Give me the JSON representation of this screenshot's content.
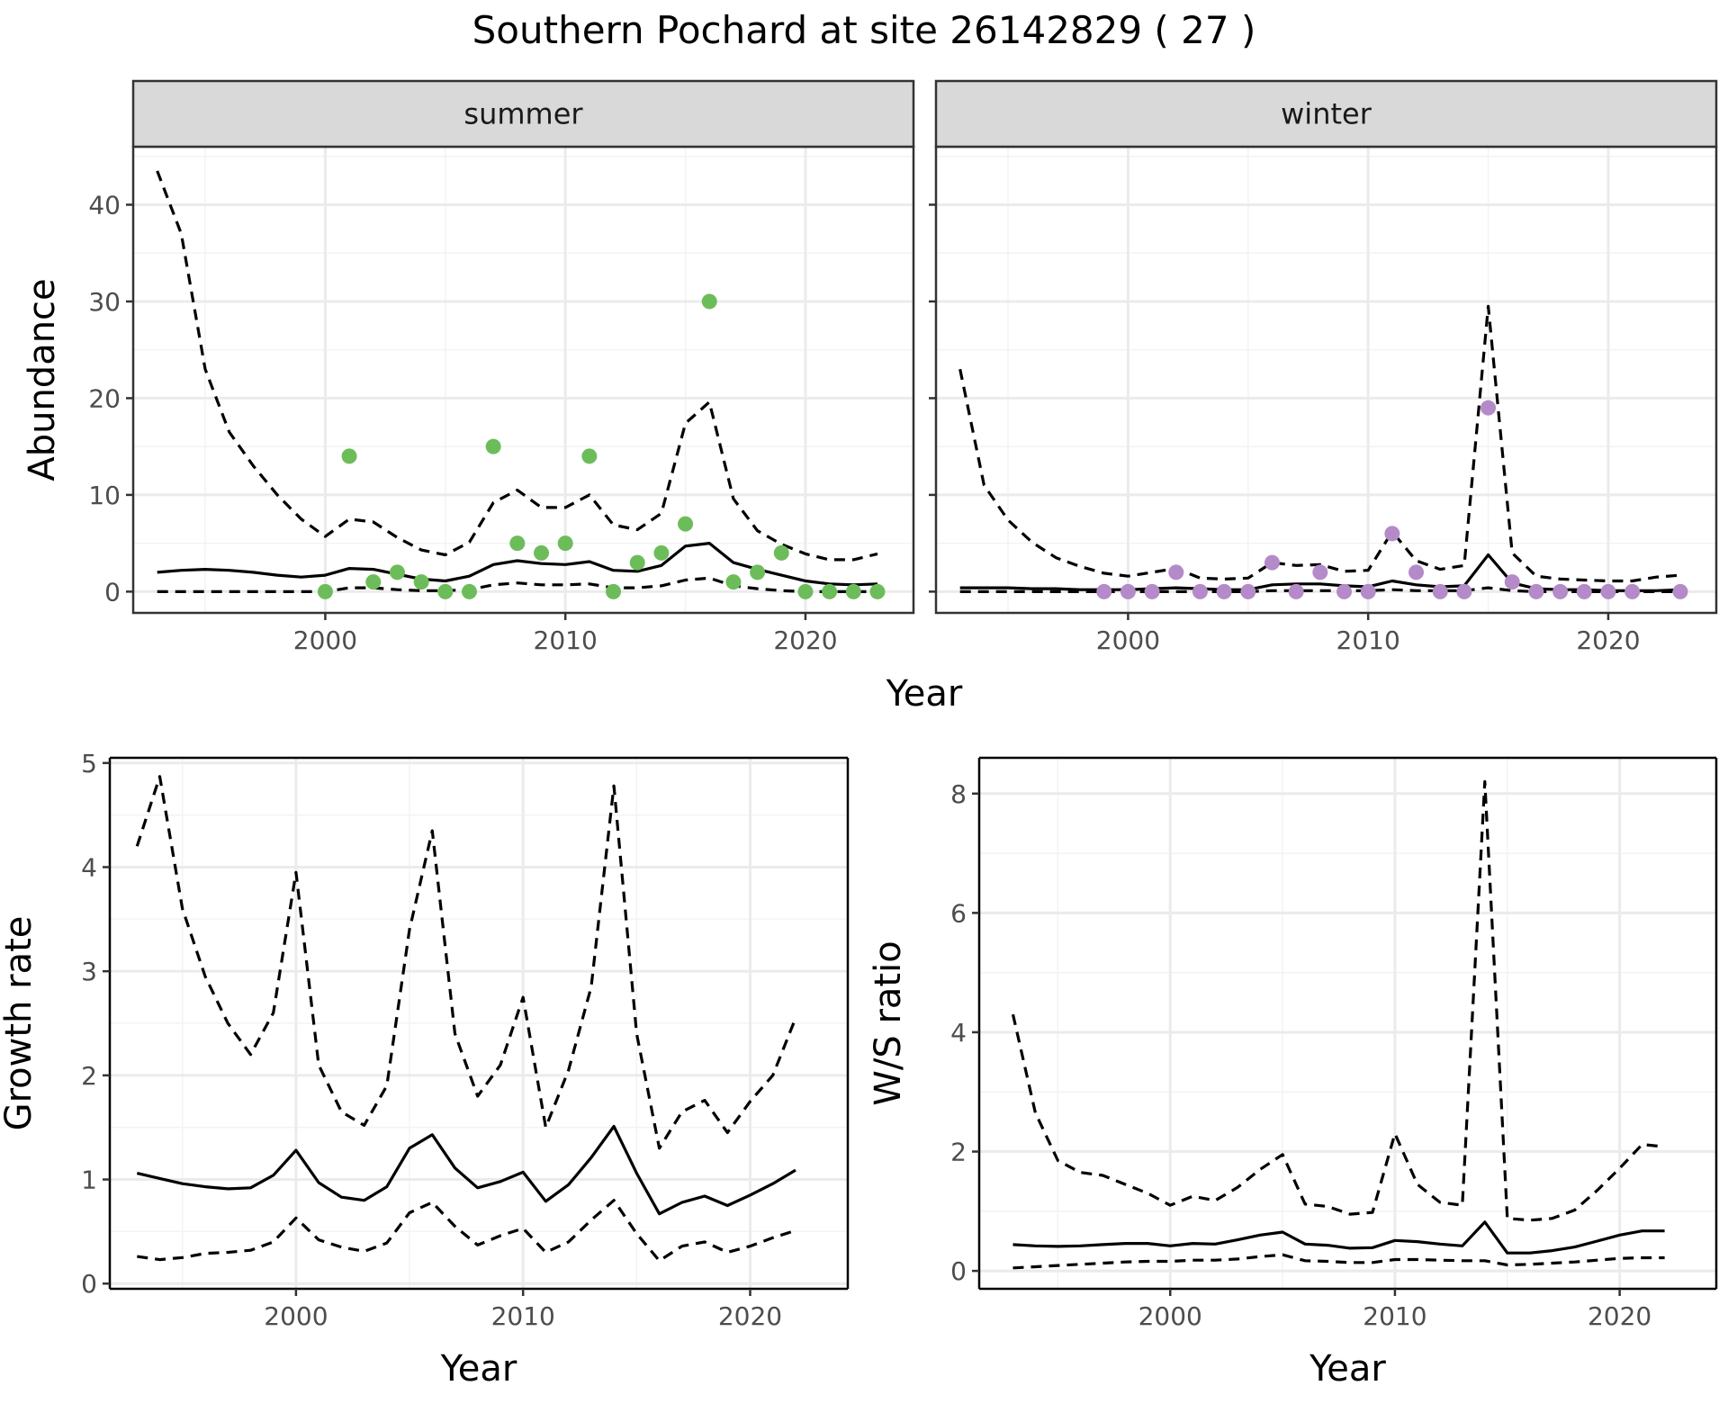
{
  "figure": {
    "title": "Southern Pochard at site 26142829 ( 27 )"
  },
  "chart_data": [
    {
      "id": "abundance-summer",
      "type": "line+scatter",
      "strip_label": "summer",
      "ylabel": "Abundance",
      "xlabel": "",
      "xlim": [
        1992,
        2024.5
      ],
      "ylim": [
        -2.2,
        46
      ],
      "x_ticks": [
        2000,
        2010,
        2020
      ],
      "y_ticks": [
        0,
        10,
        20,
        30,
        40
      ],
      "grid": true,
      "point_color": "#6cbd5a",
      "mean": {
        "x": [
          1993,
          1994,
          1995,
          1996,
          1997,
          1998,
          1999,
          2000,
          2001,
          2002,
          2003,
          2004,
          2005,
          2006,
          2007,
          2008,
          2009,
          2010,
          2011,
          2012,
          2013,
          2014,
          2015,
          2016,
          2017,
          2018,
          2019,
          2020,
          2021,
          2022,
          2023
        ],
        "y": [
          2.0,
          2.2,
          2.3,
          2.2,
          2.0,
          1.7,
          1.5,
          1.7,
          2.4,
          2.3,
          1.8,
          1.3,
          1.1,
          1.6,
          2.8,
          3.2,
          2.9,
          2.8,
          3.1,
          2.2,
          2.1,
          2.7,
          4.7,
          5.0,
          3.0,
          2.3,
          1.7,
          1.1,
          0.8,
          0.7,
          0.8
        ]
      },
      "upper": {
        "x": [
          1993,
          1994,
          1995,
          1996,
          1997,
          1998,
          1999,
          2000,
          2001,
          2002,
          2003,
          2004,
          2005,
          2006,
          2007,
          2008,
          2009,
          2010,
          2011,
          2012,
          2013,
          2014,
          2015,
          2016,
          2017,
          2018,
          2019,
          2020,
          2021,
          2022,
          2023
        ],
        "y": [
          43.5,
          37,
          23,
          16.5,
          13,
          10,
          7.5,
          5.7,
          7.5,
          7.2,
          5.6,
          4.3,
          3.8,
          5.1,
          9.2,
          10.5,
          8.7,
          8.7,
          10,
          6.9,
          6.4,
          8.1,
          17.4,
          19.6,
          9.6,
          6.3,
          4.9,
          3.9,
          3.3,
          3.3,
          3.9
        ]
      },
      "lower": {
        "x": [
          1993,
          1994,
          1995,
          1996,
          1997,
          1998,
          1999,
          2000,
          2001,
          2002,
          2003,
          2004,
          2005,
          2006,
          2007,
          2008,
          2009,
          2010,
          2011,
          2012,
          2013,
          2014,
          2015,
          2016,
          2017,
          2018,
          2019,
          2020,
          2021,
          2022,
          2023
        ],
        "y": [
          0,
          0,
          0,
          0,
          0,
          0,
          0,
          0,
          0.4,
          0.4,
          0.2,
          0.1,
          0.1,
          0.2,
          0.7,
          0.9,
          0.7,
          0.7,
          0.8,
          0.4,
          0.4,
          0.6,
          1.2,
          1.4,
          0.6,
          0.3,
          0.1,
          0,
          0,
          0,
          0
        ]
      },
      "points": {
        "x": [
          2000,
          2001,
          2002,
          2003,
          2004,
          2005,
          2006,
          2007,
          2008,
          2009,
          2010,
          2011,
          2012,
          2013,
          2014,
          2015,
          2016,
          2017,
          2018,
          2019,
          2020,
          2021,
          2022,
          2023
        ],
        "y": [
          0,
          14,
          1,
          2,
          1,
          0,
          0,
          15,
          5,
          4,
          5,
          14,
          0,
          3,
          4,
          7,
          30,
          1,
          2,
          4,
          0,
          0,
          0,
          0
        ]
      }
    },
    {
      "id": "abundance-winter",
      "type": "line+scatter",
      "strip_label": "winter",
      "ylabel": "",
      "xlabel": "",
      "xlim": [
        1992,
        2024.5
      ],
      "ylim": [
        -2.2,
        46
      ],
      "x_ticks": [
        2000,
        2010,
        2020
      ],
      "y_ticks": [
        0,
        10,
        20,
        30,
        40
      ],
      "grid": true,
      "point_color": "#b48ac8",
      "mean": {
        "x": [
          1993,
          1994,
          1995,
          1996,
          1997,
          1998,
          1999,
          2000,
          2001,
          2002,
          2003,
          2004,
          2005,
          2006,
          2007,
          2008,
          2009,
          2010,
          2011,
          2012,
          2013,
          2014,
          2015,
          2016,
          2017,
          2018,
          2019,
          2020,
          2021,
          2022,
          2023
        ],
        "y": [
          0.4,
          0.4,
          0.4,
          0.3,
          0.3,
          0.2,
          0.2,
          0.2,
          0.3,
          0.4,
          0.3,
          0.2,
          0.2,
          0.7,
          0.8,
          0.8,
          0.6,
          0.5,
          1.1,
          0.7,
          0.5,
          0.6,
          3.8,
          0.9,
          0.3,
          0.2,
          0.2,
          0.1,
          0.1,
          0.1,
          0.2
        ]
      },
      "upper": {
        "x": [
          1993,
          1994,
          1995,
          1996,
          1997,
          1998,
          1999,
          2000,
          2001,
          2002,
          2003,
          2004,
          2005,
          2006,
          2007,
          2008,
          2009,
          2010,
          2011,
          2012,
          2013,
          2014,
          2015,
          2016,
          2017,
          2018,
          2019,
          2020,
          2021,
          2022,
          2023
        ],
        "y": [
          23,
          11,
          7.4,
          5.1,
          3.5,
          2.6,
          1.9,
          1.6,
          2.0,
          2.4,
          1.4,
          1.3,
          1.4,
          3.0,
          2.7,
          2.8,
          2.1,
          2.2,
          6.2,
          3.2,
          2.3,
          2.7,
          29.5,
          4.0,
          1.6,
          1.3,
          1.2,
          1.1,
          1.1,
          1.5,
          1.7
        ]
      },
      "lower": {
        "x": [
          1993,
          1994,
          1995,
          1996,
          1997,
          1998,
          1999,
          2000,
          2001,
          2002,
          2003,
          2004,
          2005,
          2006,
          2007,
          2008,
          2009,
          2010,
          2011,
          2012,
          2013,
          2014,
          2015,
          2016,
          2017,
          2018,
          2019,
          2020,
          2021,
          2022,
          2023
        ],
        "y": [
          0,
          0,
          0,
          0,
          0,
          0,
          0,
          0,
          0,
          0,
          0,
          0,
          0,
          0.1,
          0.1,
          0.1,
          0.1,
          0.1,
          0.2,
          0.1,
          0.1,
          0.1,
          0.4,
          0.1,
          0,
          0,
          0,
          0,
          0,
          0,
          0
        ]
      },
      "points": {
        "x": [
          1999,
          2000,
          2001,
          2002,
          2003,
          2004,
          2005,
          2006,
          2007,
          2008,
          2009,
          2010,
          2011,
          2012,
          2013,
          2014,
          2015,
          2016,
          2017,
          2018,
          2019,
          2020,
          2021,
          2023
        ],
        "y": [
          0,
          0,
          0,
          2,
          0,
          0,
          0,
          3,
          0,
          2,
          0,
          0,
          6,
          2,
          0,
          0,
          19,
          1,
          0,
          0,
          0,
          0,
          0,
          0
        ]
      }
    },
    {
      "id": "growth-rate",
      "type": "line",
      "xlabel": "Year",
      "ylabel": "Growth rate",
      "xlim": [
        1991.8,
        2024.3
      ],
      "ylim": [
        -0.05,
        5.05
      ],
      "x_ticks": [
        2000,
        2010,
        2020
      ],
      "y_ticks": [
        0,
        1,
        2,
        3,
        4,
        5
      ],
      "grid": true,
      "mean": {
        "x": [
          1993,
          1994,
          1995,
          1996,
          1997,
          1998,
          1999,
          2000,
          2001,
          2002,
          2003,
          2004,
          2005,
          2006,
          2007,
          2008,
          2009,
          2010,
          2011,
          2012,
          2013,
          2014,
          2015,
          2016,
          2017,
          2018,
          2019,
          2020,
          2021,
          2022
        ],
        "y": [
          1.06,
          1.01,
          0.96,
          0.93,
          0.91,
          0.92,
          1.04,
          1.28,
          0.97,
          0.83,
          0.8,
          0.93,
          1.3,
          1.43,
          1.11,
          0.92,
          0.98,
          1.07,
          0.79,
          0.95,
          1.21,
          1.51,
          1.06,
          0.67,
          0.78,
          0.84,
          0.75,
          0.85,
          0.96,
          1.09
        ]
      },
      "upper": {
        "x": [
          1993,
          1994,
          1995,
          1996,
          1997,
          1998,
          1999,
          2000,
          2001,
          2002,
          2003,
          2004,
          2005,
          2006,
          2007,
          2008,
          2009,
          2010,
          2011,
          2012,
          2013,
          2014,
          2015,
          2016,
          2017,
          2018,
          2019,
          2020,
          2021,
          2022
        ],
        "y": [
          4.2,
          4.87,
          3.6,
          2.95,
          2.5,
          2.2,
          2.6,
          3.95,
          2.1,
          1.65,
          1.52,
          1.9,
          3.4,
          4.35,
          2.4,
          1.8,
          2.1,
          2.75,
          1.5,
          2.05,
          2.85,
          4.78,
          2.4,
          1.3,
          1.65,
          1.76,
          1.45,
          1.75,
          2.0,
          2.55
        ]
      },
      "lower": {
        "x": [
          1993,
          1994,
          1995,
          1996,
          1997,
          1998,
          1999,
          2000,
          2001,
          2002,
          2003,
          2004,
          2005,
          2006,
          2007,
          2008,
          2009,
          2010,
          2011,
          2012,
          2013,
          2014,
          2015,
          2016,
          2017,
          2018,
          2019,
          2020,
          2021,
          2022
        ],
        "y": [
          0.26,
          0.23,
          0.25,
          0.29,
          0.3,
          0.32,
          0.4,
          0.63,
          0.42,
          0.35,
          0.31,
          0.39,
          0.68,
          0.78,
          0.55,
          0.37,
          0.46,
          0.53,
          0.3,
          0.4,
          0.61,
          0.8,
          0.48,
          0.22,
          0.36,
          0.4,
          0.3,
          0.36,
          0.44,
          0.51
        ]
      }
    },
    {
      "id": "ws-ratio",
      "type": "line",
      "xlabel": "Year",
      "ylabel": "W/S ratio",
      "xlim": [
        1991.5,
        2024.3
      ],
      "ylim": [
        -0.3,
        8.6
      ],
      "x_ticks": [
        2000,
        2010,
        2020
      ],
      "y_ticks": [
        0,
        2,
        4,
        6,
        8
      ],
      "grid": true,
      "mean": {
        "x": [
          1993,
          1994,
          1995,
          1996,
          1997,
          1998,
          1999,
          2000,
          2001,
          2002,
          2003,
          2004,
          2005,
          2006,
          2007,
          2008,
          2009,
          2010,
          2011,
          2012,
          2013,
          2014,
          2015,
          2016,
          2017,
          2018,
          2019,
          2020,
          2021,
          2022
        ],
        "y": [
          0.44,
          0.42,
          0.41,
          0.42,
          0.44,
          0.46,
          0.46,
          0.42,
          0.46,
          0.45,
          0.52,
          0.6,
          0.65,
          0.45,
          0.43,
          0.38,
          0.39,
          0.51,
          0.49,
          0.45,
          0.42,
          0.82,
          0.3,
          0.3,
          0.34,
          0.4,
          0.5,
          0.6,
          0.67,
          0.67
        ]
      },
      "upper": {
        "x": [
          1993,
          1994,
          1995,
          1996,
          1997,
          1998,
          1999,
          2000,
          2001,
          2002,
          2003,
          2004,
          2005,
          2006,
          2007,
          2008,
          2009,
          2010,
          2011,
          2012,
          2013,
          2014,
          2015,
          2016,
          2017,
          2018,
          2019,
          2020,
          2021,
          2022
        ],
        "y": [
          4.3,
          2.65,
          1.85,
          1.65,
          1.6,
          1.45,
          1.3,
          1.1,
          1.25,
          1.18,
          1.4,
          1.7,
          1.95,
          1.12,
          1.08,
          0.95,
          0.98,
          2.3,
          1.45,
          1.15,
          1.1,
          8.2,
          0.88,
          0.85,
          0.88,
          1.02,
          1.35,
          1.72,
          2.12,
          2.08
        ]
      },
      "lower": {
        "x": [
          1993,
          1994,
          1995,
          1996,
          1997,
          1998,
          1999,
          2000,
          2001,
          2002,
          2003,
          2004,
          2005,
          2006,
          2007,
          2008,
          2009,
          2010,
          2011,
          2012,
          2013,
          2014,
          2015,
          2016,
          2017,
          2018,
          2019,
          2020,
          2021,
          2022
        ],
        "y": [
          0.05,
          0.07,
          0.09,
          0.11,
          0.13,
          0.15,
          0.16,
          0.16,
          0.18,
          0.18,
          0.2,
          0.24,
          0.27,
          0.17,
          0.16,
          0.14,
          0.14,
          0.19,
          0.19,
          0.18,
          0.17,
          0.17,
          0.1,
          0.11,
          0.13,
          0.15,
          0.18,
          0.21,
          0.22,
          0.22
        ]
      }
    }
  ]
}
